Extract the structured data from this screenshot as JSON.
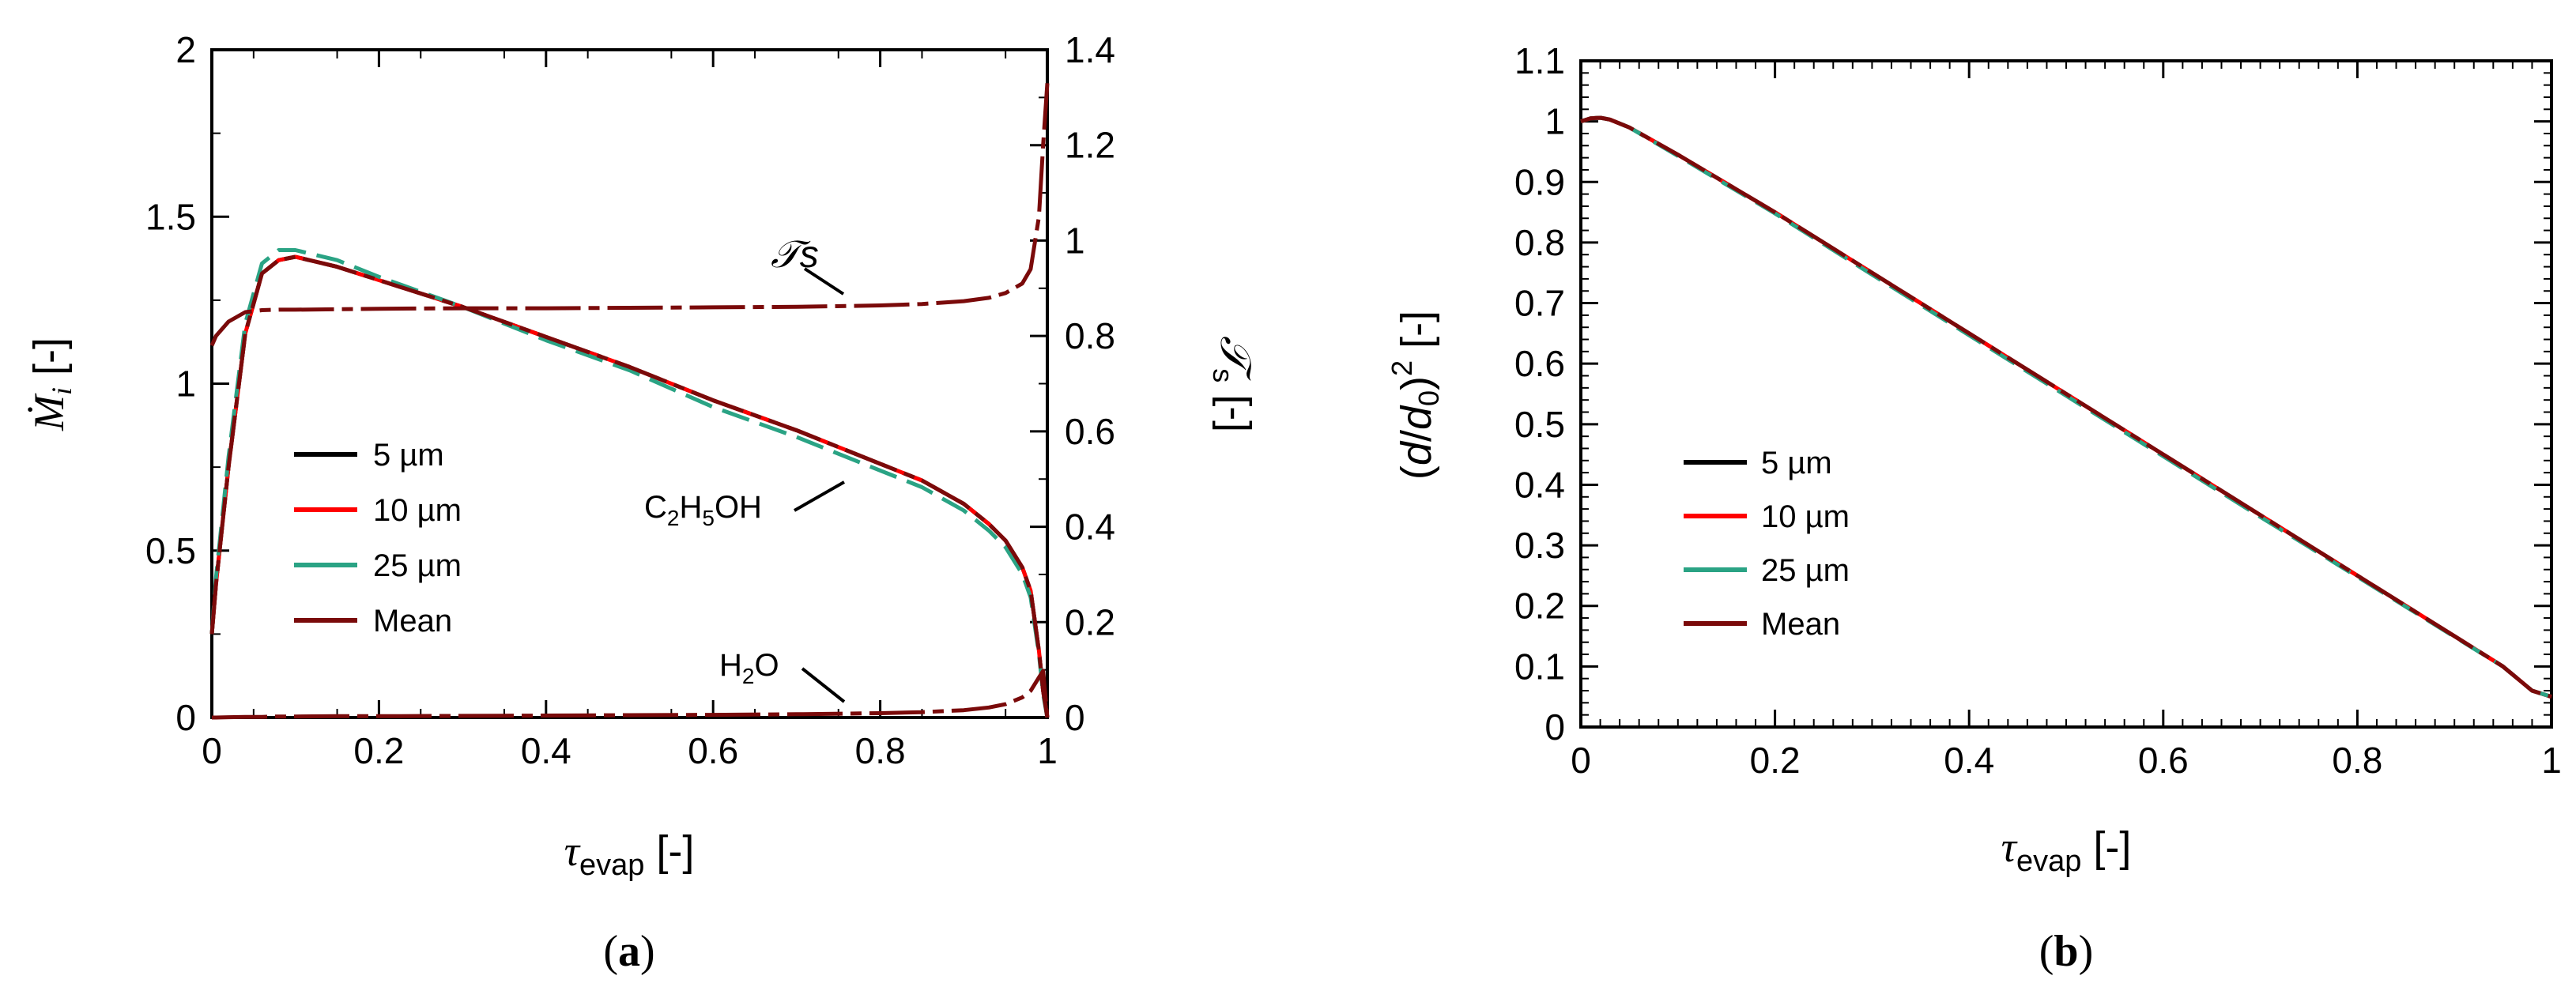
{
  "chart_data": [
    {
      "panel": "a",
      "type": "line",
      "caption": "(a)",
      "xlabel": "τevap [-]",
      "ylabel_left": "Ṁi [-]",
      "ylabel_right": "𝒯s [-]",
      "xlim": [
        0,
        1
      ],
      "ylim_left": [
        0,
        2
      ],
      "ylim_right": [
        0,
        1.4
      ],
      "xticks": [
        "0",
        "0.2",
        "0.4",
        "0.6",
        "0.8",
        "1"
      ],
      "yticks_left": [
        "0",
        "0.5",
        "1",
        "1.5",
        "2"
      ],
      "yticks_right": [
        "0",
        "0.2",
        "0.4",
        "0.6",
        "0.8",
        "1",
        "1.2",
        "1.4"
      ],
      "annotations": [
        "𝒯s",
        "C2H5OH",
        "H2O"
      ],
      "legend": [
        "5 µm",
        "10 µm",
        "25 µm",
        "Mean"
      ],
      "x": [
        0,
        0.005,
        0.02,
        0.04,
        0.06,
        0.08,
        0.1,
        0.15,
        0.2,
        0.3,
        0.4,
        0.5,
        0.6,
        0.7,
        0.8,
        0.85,
        0.9,
        0.93,
        0.95,
        0.97,
        0.98,
        0.99,
        0.995,
        1.0
      ],
      "series": [
        {
          "name": "C2H5OH 5 µm",
          "axis": "left",
          "color": "#000000",
          "values": [
            0.25,
            0.4,
            0.75,
            1.15,
            1.33,
            1.37,
            1.38,
            1.35,
            1.31,
            1.23,
            1.14,
            1.05,
            0.95,
            0.86,
            0.76,
            0.71,
            0.64,
            0.58,
            0.53,
            0.45,
            0.38,
            0.2,
            0.08,
            0.0
          ]
        },
        {
          "name": "C2H5OH 10 µm",
          "axis": "left",
          "color": "#ff0000",
          "values": [
            0.25,
            0.4,
            0.75,
            1.15,
            1.33,
            1.37,
            1.38,
            1.35,
            1.31,
            1.23,
            1.14,
            1.05,
            0.95,
            0.86,
            0.76,
            0.71,
            0.64,
            0.58,
            0.53,
            0.45,
            0.38,
            0.2,
            0.08,
            0.0
          ]
        },
        {
          "name": "C2H5OH 25 µm",
          "axis": "left",
          "color": "#2aa384",
          "values": [
            0.25,
            0.42,
            0.78,
            1.18,
            1.36,
            1.4,
            1.4,
            1.37,
            1.32,
            1.23,
            1.13,
            1.04,
            0.93,
            0.84,
            0.74,
            0.69,
            0.62,
            0.56,
            0.51,
            0.43,
            0.36,
            0.19,
            0.07,
            0.0
          ]
        },
        {
          "name": "C2H5OH Mean",
          "axis": "left",
          "color": "#7a0a0a",
          "values": [
            0.25,
            0.4,
            0.75,
            1.15,
            1.33,
            1.37,
            1.38,
            1.35,
            1.31,
            1.23,
            1.14,
            1.05,
            0.95,
            0.86,
            0.76,
            0.71,
            0.64,
            0.58,
            0.53,
            0.45,
            0.38,
            0.2,
            0.08,
            0.0
          ]
        },
        {
          "name": "H2O Mean",
          "axis": "left",
          "color": "#7a0a0a",
          "values": [
            0.0,
            0.0,
            0.001,
            0.002,
            0.002,
            0.003,
            0.003,
            0.004,
            0.004,
            0.005,
            0.006,
            0.007,
            0.008,
            0.01,
            0.013,
            0.016,
            0.022,
            0.03,
            0.04,
            0.06,
            0.08,
            0.12,
            0.14,
            0.0
          ]
        },
        {
          "name": "Ts Mean",
          "axis": "right",
          "color": "#7a0a0a",
          "values": [
            0.78,
            0.8,
            0.83,
            0.85,
            0.854,
            0.855,
            0.855,
            0.856,
            0.857,
            0.858,
            0.858,
            0.859,
            0.86,
            0.861,
            0.864,
            0.867,
            0.873,
            0.88,
            0.89,
            0.91,
            0.94,
            1.05,
            1.2,
            1.33
          ]
        }
      ]
    },
    {
      "panel": "b",
      "type": "line",
      "caption": "(b)",
      "xlabel": "τevap [-]",
      "ylabel": "(d/d0)2 [-]",
      "xlim": [
        0,
        1
      ],
      "ylim": [
        0,
        1.1
      ],
      "xticks": [
        "0",
        "0.2",
        "0.4",
        "0.6",
        "0.8",
        "1"
      ],
      "yticks": [
        "0",
        "0.1",
        "0.2",
        "0.3",
        "0.4",
        "0.5",
        "0.6",
        "0.7",
        "0.8",
        "0.9",
        "1",
        "1.1"
      ],
      "legend": [
        "5 µm",
        "10 µm",
        "25 µm",
        "Mean"
      ],
      "x": [
        0,
        0.01,
        0.02,
        0.03,
        0.05,
        0.1,
        0.2,
        0.3,
        0.4,
        0.5,
        0.6,
        0.7,
        0.8,
        0.9,
        0.95,
        0.98,
        1.0
      ],
      "series": [
        {
          "name": "5 µm",
          "color": "#000000",
          "values": [
            1.0,
            1.005,
            1.006,
            1.003,
            0.99,
            0.945,
            0.85,
            0.75,
            0.65,
            0.55,
            0.45,
            0.35,
            0.25,
            0.15,
            0.1,
            0.06,
            0.05
          ]
        },
        {
          "name": "10 µm",
          "color": "#ff0000",
          "values": [
            1.0,
            1.005,
            1.006,
            1.003,
            0.99,
            0.945,
            0.85,
            0.75,
            0.65,
            0.55,
            0.45,
            0.35,
            0.25,
            0.15,
            0.1,
            0.06,
            0.05
          ]
        },
        {
          "name": "25 µm",
          "color": "#2aa384",
          "values": [
            1.0,
            1.005,
            1.006,
            1.003,
            0.99,
            0.943,
            0.848,
            0.747,
            0.647,
            0.547,
            0.447,
            0.347,
            0.248,
            0.149,
            0.1,
            0.06,
            0.05
          ]
        },
        {
          "name": "Mean",
          "color": "#7a0a0a",
          "values": [
            1.0,
            1.005,
            1.006,
            1.003,
            0.99,
            0.945,
            0.85,
            0.75,
            0.65,
            0.55,
            0.45,
            0.35,
            0.25,
            0.15,
            0.1,
            0.06,
            0.05
          ]
        }
      ]
    }
  ]
}
